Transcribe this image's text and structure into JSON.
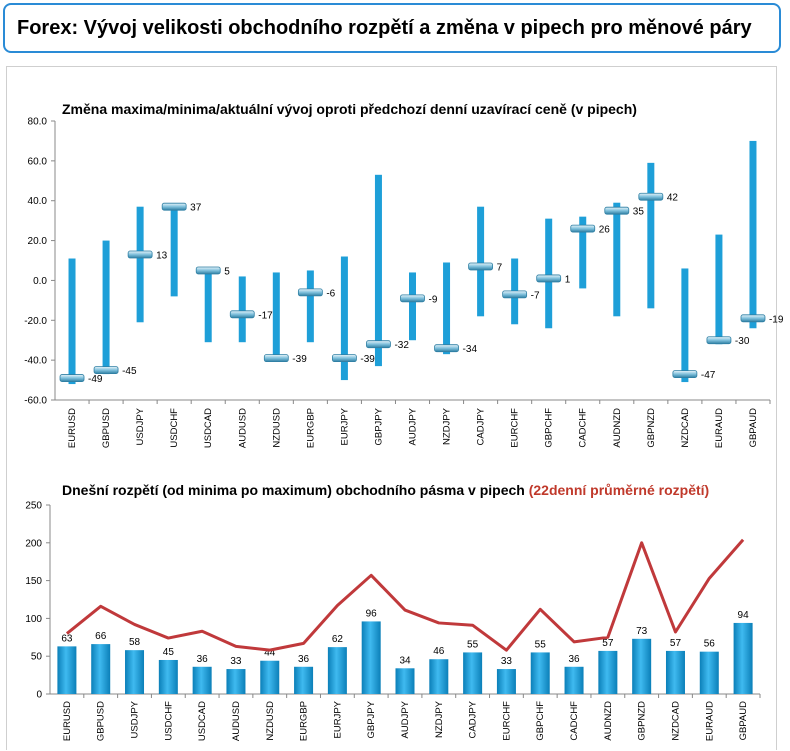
{
  "header": {
    "title": "Forex: Vývoj velikosti obchodního rozpětí a změna v pipech pro měnové páry"
  },
  "colors": {
    "bar": "#1e9fd8",
    "line": "#c0393b",
    "marker": "#4aa6c9",
    "border": "#2a8bd6"
  },
  "chart_data": [
    {
      "type": "bar",
      "title": "Změna maxima/minima/aktuální vývoj oproti předchozí denní uzavírací ceně (v pipech)",
      "categories": [
        "EURUSD",
        "GBPUSD",
        "USDJPY",
        "USDCHF",
        "USDCAD",
        "AUDUSD",
        "NZDUSD",
        "EURGBP",
        "EURJPY",
        "GBPJPY",
        "AUDJPY",
        "NZDJPY",
        "CADJPY",
        "EURCHF",
        "GBPCHF",
        "CADCHF",
        "AUDNZD",
        "GBPNZD",
        "NZDCAD",
        "EURAUD",
        "GBPAUD"
      ],
      "high": [
        11,
        20,
        37,
        38,
        6,
        2,
        4,
        5,
        12,
        53,
        4,
        9,
        37,
        11,
        31,
        32,
        39,
        59,
        6,
        23,
        70
      ],
      "low": [
        -52,
        -47,
        -21,
        -8,
        -31,
        -31,
        -40,
        -31,
        -50,
        -43,
        -30,
        -37,
        -18,
        -22,
        -24,
        -4,
        -18,
        -14,
        -51,
        -32,
        -24
      ],
      "current": [
        -49,
        -45,
        13,
        37,
        5,
        -17,
        -39,
        -6,
        -39,
        -32,
        -9,
        -34,
        7,
        -7,
        1,
        26,
        35,
        42,
        -47,
        -30,
        -19
      ],
      "ylim": [
        -60,
        80
      ],
      "yticks": [
        "-60.0",
        "-40.0",
        "-20.0",
        "0.0",
        "20.0",
        "40.0",
        "60.0",
        "80.0"
      ]
    },
    {
      "type": "bar",
      "title": "Dnešní rozpětí (od minima po maximum) obchodního pásma v pipech",
      "title_highlight": "(22denní průměrné rozpětí)",
      "categories": [
        "EURUSD",
        "GBPUSD",
        "USDJPY",
        "USDCHF",
        "USDCAD",
        "AUDUSD",
        "NZDUSD",
        "EURGBP",
        "EURJPY",
        "GBPJPY",
        "AUDJPY",
        "NZDJPY",
        "CADJPY",
        "EURCHF",
        "GBPCHF",
        "CADCHF",
        "AUDNZD",
        "GBPNZD",
        "NZDCAD",
        "EURAUD",
        "GBPAUD"
      ],
      "values": [
        63,
        66,
        58,
        45,
        36,
        33,
        44,
        36,
        62,
        96,
        34,
        46,
        55,
        33,
        55,
        36,
        57,
        73,
        57,
        56,
        94
      ],
      "average": [
        80,
        116,
        92,
        74,
        83,
        63,
        58,
        67,
        117,
        157,
        111,
        94,
        91,
        58,
        112,
        69,
        75,
        200,
        82,
        153,
        204
      ],
      "ylim": [
        0,
        250
      ],
      "yticks": [
        "0",
        "50",
        "100",
        "150",
        "200",
        "250"
      ]
    }
  ]
}
